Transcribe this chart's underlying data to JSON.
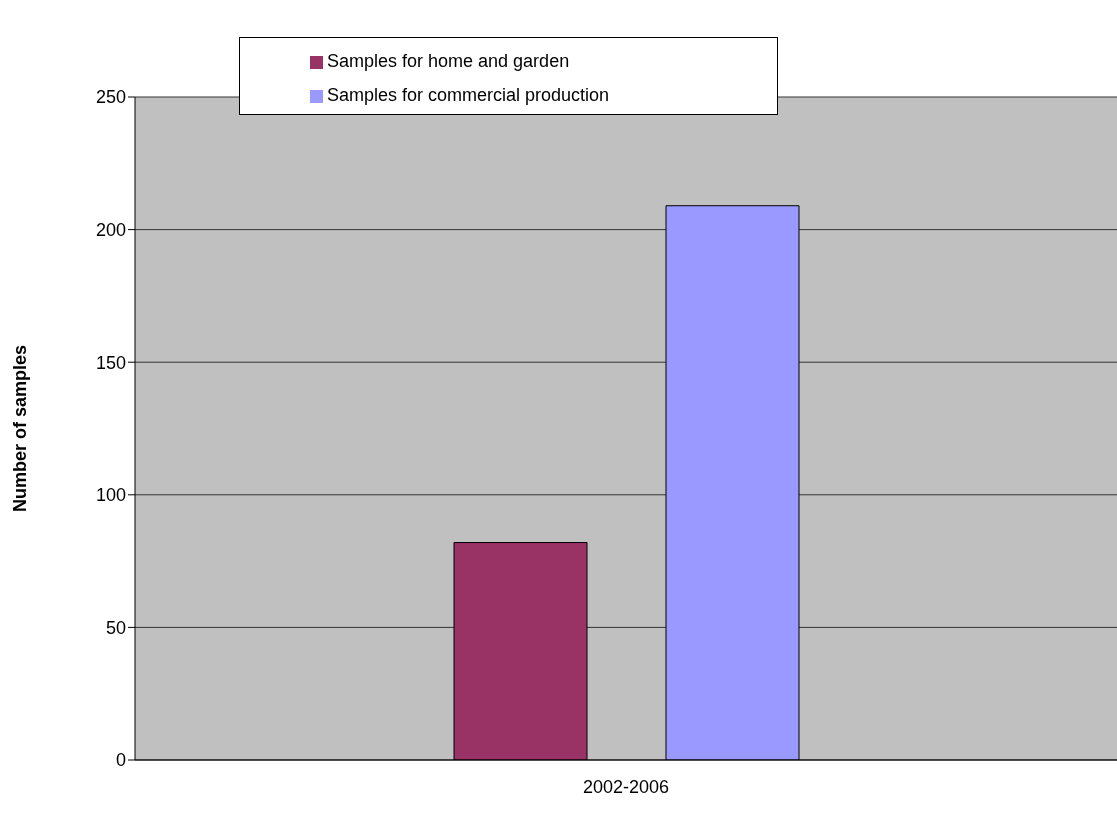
{
  "chart_data": {
    "type": "bar",
    "ylabel": "Number of samples",
    "categories": [
      "2002-2006"
    ],
    "series": [
      {
        "name": "Samples for home and garden",
        "color": "#993366",
        "values": [
          82
        ]
      },
      {
        "name": "Samples for commercial production",
        "color": "#9999ff",
        "values": [
          209
        ]
      }
    ],
    "ylim": [
      0,
      250
    ],
    "yticks": [
      0,
      50,
      100,
      150,
      200,
      250
    ],
    "grid": "y",
    "legend": "top left"
  }
}
